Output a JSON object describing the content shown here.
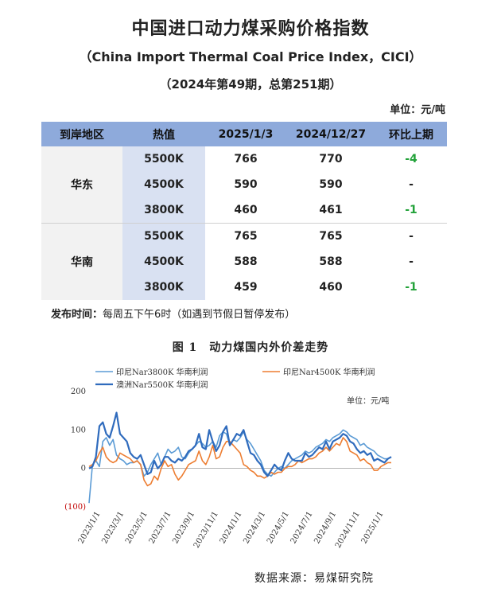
{
  "header": {
    "title": "中国进口动力煤采购价格指数",
    "subtitle": "（China Import Thermal Coal Price Index，CICI）",
    "issue": "（2024年第49期，总第251期）",
    "unit": "单位：元/吨"
  },
  "table": {
    "headers": [
      "到岸地区",
      "热值",
      "2025/1/3",
      "2024/12/27",
      "环比上期"
    ],
    "groups": [
      {
        "region": "华东",
        "rows": [
          {
            "spec": "5500K",
            "current": "766",
            "previous": "770",
            "change": "-4"
          },
          {
            "spec": "4500K",
            "current": "590",
            "previous": "590",
            "change": "-"
          },
          {
            "spec": "3800K",
            "current": "460",
            "previous": "461",
            "change": "-1"
          }
        ]
      },
      {
        "region": "华南",
        "rows": [
          {
            "spec": "5500K",
            "current": "765",
            "previous": "765",
            "change": "-"
          },
          {
            "spec": "4500K",
            "current": "588",
            "previous": "588",
            "change": "-"
          },
          {
            "spec": "3800K",
            "current": "459",
            "previous": "460",
            "change": "-1"
          }
        ]
      }
    ]
  },
  "release": {
    "label": "发布时间：",
    "text": "每周五下午6时（如遇到节假日暂停发布）"
  },
  "figure": {
    "title": "图 1　动力煤国内外价差走势"
  },
  "colors": {
    "header_bg": "#8eaadb",
    "spec_bg": "#d9e1f2",
    "negative": "#23a23a",
    "series_light": "#5b9bd5",
    "series_orange": "#ed7d31",
    "series_dark": "#2f6bbd"
  },
  "chart_data": {
    "type": "line",
    "unit_label": "单位：元/吨",
    "ylim": [
      -100,
      200
    ],
    "yticks": [
      "200",
      "100",
      "0",
      "(100)"
    ],
    "xticks": [
      "2023/1/1",
      "2023/3/1",
      "2023/5/1",
      "2023/7/1",
      "2023/9/1",
      "2023/11/1",
      "2024/1/1",
      "2024/3/1",
      "2024/5/1",
      "2024/7/1",
      "2024/9/1",
      "2024/11/1",
      "2025/1/1"
    ],
    "legend_position": "top",
    "series": [
      {
        "name": "印尼Nar3800K 华南利润",
        "color": "#5b9bd5",
        "width": 1.6,
        "values": [
          -90,
          10,
          20,
          5,
          70,
          80,
          60,
          75,
          35,
          25,
          20,
          10,
          15,
          15,
          20,
          10,
          -20,
          -10,
          10,
          25,
          40,
          10,
          30,
          50,
          40,
          45,
          55,
          30,
          25,
          40,
          50,
          60,
          70,
          65,
          55,
          60,
          70,
          55,
          85,
          95,
          90,
          60,
          75,
          70,
          80,
          95,
          75,
          65,
          50,
          35,
          20,
          -5,
          -15,
          -20,
          -10,
          0,
          5,
          0,
          10,
          20,
          25,
          30,
          35,
          45,
          40,
          45,
          55,
          60,
          65,
          75,
          70,
          80,
          85,
          90,
          100,
          95,
          85,
          80,
          75,
          60,
          65,
          55,
          50,
          45,
          35,
          30,
          25,
          25,
          30
        ]
      },
      {
        "name": "印尼Nar4500K 华南利润",
        "color": "#ed7d31",
        "width": 1.6,
        "values": [
          5,
          10,
          20,
          40,
          55,
          30,
          20,
          15,
          20,
          40,
          35,
          30,
          25,
          15,
          20,
          10,
          -30,
          -45,
          -40,
          -20,
          -30,
          0,
          20,
          5,
          10,
          -15,
          -30,
          -20,
          -5,
          10,
          15,
          20,
          45,
          20,
          10,
          30,
          60,
          25,
          30,
          55,
          70,
          70,
          60,
          50,
          40,
          10,
          5,
          -5,
          -10,
          -20,
          -20,
          -25,
          -20,
          -10,
          -15,
          -10,
          -10,
          0,
          5,
          5,
          10,
          20,
          15,
          20,
          25,
          25,
          30,
          40,
          45,
          55,
          45,
          55,
          65,
          60,
          80,
          70,
          45,
          40,
          35,
          20,
          25,
          15,
          10,
          -5,
          -5,
          5,
          10,
          15,
          15
        ]
      },
      {
        "name": "澳洲Nar5500K 华南利润",
        "color": "#2f6bbd",
        "width": 2.2,
        "values": [
          0,
          5,
          30,
          110,
          120,
          90,
          80,
          110,
          145,
          90,
          80,
          70,
          40,
          30,
          25,
          35,
          10,
          -15,
          -10,
          20,
          0,
          10,
          30,
          30,
          20,
          15,
          25,
          20,
          30,
          45,
          50,
          60,
          90,
          55,
          50,
          100,
          70,
          45,
          60,
          95,
          110,
          60,
          75,
          90,
          85,
          100,
          70,
          40,
          35,
          20,
          10,
          -10,
          -20,
          -5,
          10,
          0,
          -5,
          20,
          40,
          25,
          20,
          20,
          20,
          40,
          30,
          35,
          45,
          55,
          50,
          70,
          50,
          70,
          75,
          80,
          90,
          85,
          70,
          65,
          50,
          40,
          45,
          35,
          40,
          20,
          25,
          20,
          15,
          25,
          30
        ]
      }
    ]
  },
  "source": "数据来源：易煤研究院"
}
